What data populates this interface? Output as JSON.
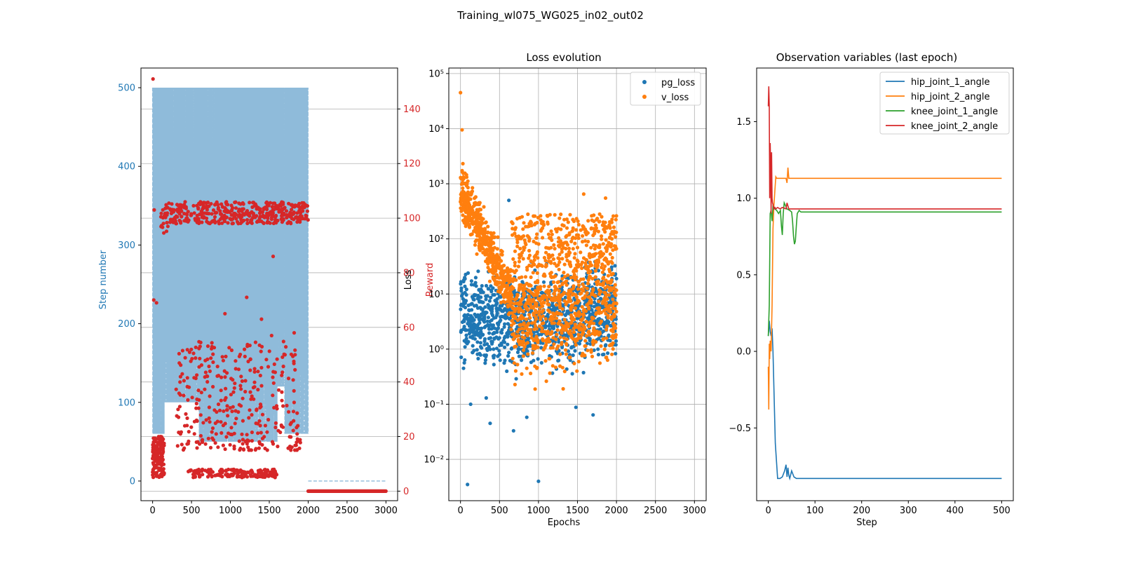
{
  "suptitle": "Training_wl075_WG025_in02_out02",
  "chart_data": [
    {
      "type": "scatter",
      "panel": "training-progress",
      "title": "",
      "xlabel": "",
      "ylabel": "Step number",
      "y2label": "Reward",
      "xlim": [
        -150,
        3150
      ],
      "ylim": [
        -25,
        525
      ],
      "y2lim": [
        -3.5,
        155
      ],
      "xticks": [
        0,
        500,
        1000,
        1500,
        2000,
        2500,
        3000
      ],
      "yticks": [
        0,
        100,
        200,
        300,
        400,
        500
      ],
      "y2ticks": [
        0,
        20,
        40,
        60,
        80,
        100,
        120,
        140
      ],
      "grid": "right axis only",
      "series": [
        {
          "name": "Step number",
          "style": "dashed-line",
          "color": "#8fbbda",
          "description": "dense dashed line oscillating between ~50 and 500 for epochs 0-2000, then 0 for epochs 2000-3000",
          "band_top": 500,
          "band_bottom_segments": [
            {
              "x": [
                0,
                150
              ],
              "y": 60
            },
            {
              "x": [
                150,
                600
              ],
              "y": 100
            },
            {
              "x": [
                600,
                1600
              ],
              "y": 50
            },
            {
              "x": [
                1600,
                1700
              ],
              "y": 120
            },
            {
              "x": [
                1700,
                2000
              ],
              "y": 60
            }
          ],
          "tail": {
            "x": [
              2000,
              3000
            ],
            "y": 0
          }
        },
        {
          "name": "Reward",
          "style": "points",
          "color": "#d62728",
          "clusters": [
            {
              "x": [
                100,
                2000
              ],
              "y_range": [
                98,
                106
              ],
              "label": "high reward band"
            },
            {
              "x": [
                0,
                150
              ],
              "y_range": [
                5,
                20
              ],
              "label": "early low reward"
            },
            {
              "x": [
                450,
                1600
              ],
              "y_range": [
                5,
                8
              ],
              "label": "low reward band"
            },
            {
              "x": [
                300,
                1900
              ],
              "y_range": [
                15,
                55
              ],
              "label": "mid scatter"
            }
          ],
          "outliers": [
            {
              "x": 5,
              "y": 151
            },
            {
              "x": 20,
              "y": 103
            },
            {
              "x": 15,
              "y": 70
            },
            {
              "x": 50,
              "y": 69
            },
            {
              "x": 930,
              "y": 65
            },
            {
              "x": 1210,
              "y": 71
            },
            {
              "x": 1400,
              "y": 63
            },
            {
              "x": 1550,
              "y": 86
            },
            {
              "x": 1530,
              "y": 57
            },
            {
              "x": 1820,
              "y": 58
            }
          ],
          "tail": {
            "x": [
              2000,
              3000
            ],
            "y": 0
          }
        }
      ]
    },
    {
      "type": "scatter",
      "panel": "loss-evolution",
      "title": "Loss evolution",
      "xlabel": "Epochs",
      "ylabel": "Loss",
      "yscale": "log",
      "xlim": [
        -150,
        3150
      ],
      "ylim_log10": [
        -2.75,
        5.1
      ],
      "xticks": [
        0,
        500,
        1000,
        1500,
        2000,
        2500,
        3000
      ],
      "yticks_log10": [
        -2,
        -1,
        0,
        1,
        2,
        3,
        4,
        5
      ],
      "grid": true,
      "legend": "top-right",
      "series": [
        {
          "name": "pg_loss",
          "color": "#1f77b4",
          "x_range": [
            0,
            2000
          ],
          "typical_log10_range": [
            -0.4,
            1.5
          ],
          "outliers": [
            {
              "x": 90,
              "y": 0.0035
            },
            {
              "x": 1000,
              "y": 0.004
            },
            {
              "x": 380,
              "y": 0.045
            },
            {
              "x": 130,
              "y": 0.1
            },
            {
              "x": 330,
              "y": 0.13
            },
            {
              "x": 680,
              "y": 0.033
            },
            {
              "x": 850,
              "y": 0.058
            },
            {
              "x": 1700,
              "y": 0.064
            },
            {
              "x": 1480,
              "y": 0.088
            },
            {
              "x": 620,
              "y": 500
            }
          ]
        },
        {
          "name": "v_loss",
          "color": "#ff7f0e",
          "x_range": [
            0,
            2000
          ],
          "trend": "decreasing from ~1e3 at epoch 0 to ~1e1 near epoch 600, then spread between ~0.2 and ~300 until epoch 2000",
          "outliers": [
            {
              "x": 0,
              "y": 45000
            },
            {
              "x": 20,
              "y": 9500
            },
            {
              "x": 1580,
              "y": 650
            },
            {
              "x": 1860,
              "y": 550
            }
          ]
        }
      ]
    },
    {
      "type": "line",
      "panel": "observation-variables",
      "title": "Observation variables (last epoch)",
      "xlabel": "Step",
      "ylabel": "",
      "xlim": [
        -25,
        525
      ],
      "ylim": [
        -0.975,
        1.85
      ],
      "xticks": [
        0,
        100,
        200,
        300,
        400,
        500
      ],
      "yticks": [
        -0.5,
        0.0,
        0.5,
        1.0,
        1.5
      ],
      "grid": false,
      "legend": "top-right",
      "series": [
        {
          "name": "hip_joint_1_angle",
          "color": "#1f77b4",
          "x": [
            0,
            2,
            4,
            6,
            8,
            10,
            15,
            20,
            25,
            30,
            35,
            38,
            40,
            42,
            44,
            46,
            50,
            55,
            60,
            70,
            100,
            200,
            300,
            400,
            500
          ],
          "y": [
            0.1,
            0.2,
            0.13,
            0.1,
            0.15,
            0.0,
            -0.6,
            -0.83,
            -0.83,
            -0.82,
            -0.78,
            -0.74,
            -0.82,
            -0.76,
            -0.81,
            -0.83,
            -0.78,
            -0.82,
            -0.83,
            -0.83,
            -0.83,
            -0.83,
            -0.83,
            -0.83,
            -0.83
          ]
        },
        {
          "name": "hip_joint_2_angle",
          "color": "#ff7f0e",
          "x": [
            0,
            1,
            2,
            3,
            4,
            6,
            8,
            10,
            12,
            14,
            16,
            18,
            20,
            30,
            38,
            40,
            42,
            44,
            50,
            60,
            100,
            200,
            300,
            400,
            500
          ],
          "y": [
            -0.1,
            -0.38,
            0.05,
            -0.05,
            0.07,
            0.0,
            0.3,
            0.8,
            0.95,
            1.05,
            1.14,
            1.13,
            1.13,
            1.13,
            1.13,
            1.1,
            1.2,
            1.13,
            1.13,
            1.13,
            1.13,
            1.13,
            1.13,
            1.13,
            1.13
          ]
        },
        {
          "name": "knee_joint_1_angle",
          "color": "#2ca02c",
          "x": [
            0,
            2,
            4,
            6,
            8,
            10,
            14,
            18,
            22,
            26,
            28,
            30,
            32,
            34,
            40,
            46,
            50,
            52,
            54,
            56,
            58,
            60,
            62,
            66,
            70,
            80,
            100,
            200,
            300,
            400,
            500
          ],
          "y": [
            0.1,
            0.3,
            0.9,
            0.92,
            0.85,
            0.95,
            0.93,
            0.92,
            0.9,
            0.92,
            0.82,
            0.76,
            0.9,
            0.97,
            0.93,
            0.92,
            0.91,
            0.85,
            0.75,
            0.7,
            0.72,
            0.82,
            0.9,
            0.92,
            0.91,
            0.91,
            0.91,
            0.91,
            0.91,
            0.91,
            0.91
          ]
        },
        {
          "name": "knee_joint_2_angle",
          "color": "#d62728",
          "x": [
            0,
            1,
            2,
            3,
            4,
            5,
            6,
            7,
            8,
            9,
            10,
            12,
            14,
            16,
            20,
            25,
            30,
            38,
            40,
            42,
            44,
            50,
            60,
            100,
            200,
            300,
            400,
            500
          ],
          "y": [
            1.6,
            1.73,
            1.6,
            1.0,
            1.36,
            1.2,
            0.9,
            1.3,
            1.0,
            0.97,
            0.96,
            0.93,
            0.94,
            0.93,
            0.94,
            0.93,
            0.94,
            0.93,
            0.97,
            0.95,
            0.93,
            0.93,
            0.93,
            0.93,
            0.93,
            0.93,
            0.93,
            0.93
          ]
        }
      ]
    }
  ]
}
